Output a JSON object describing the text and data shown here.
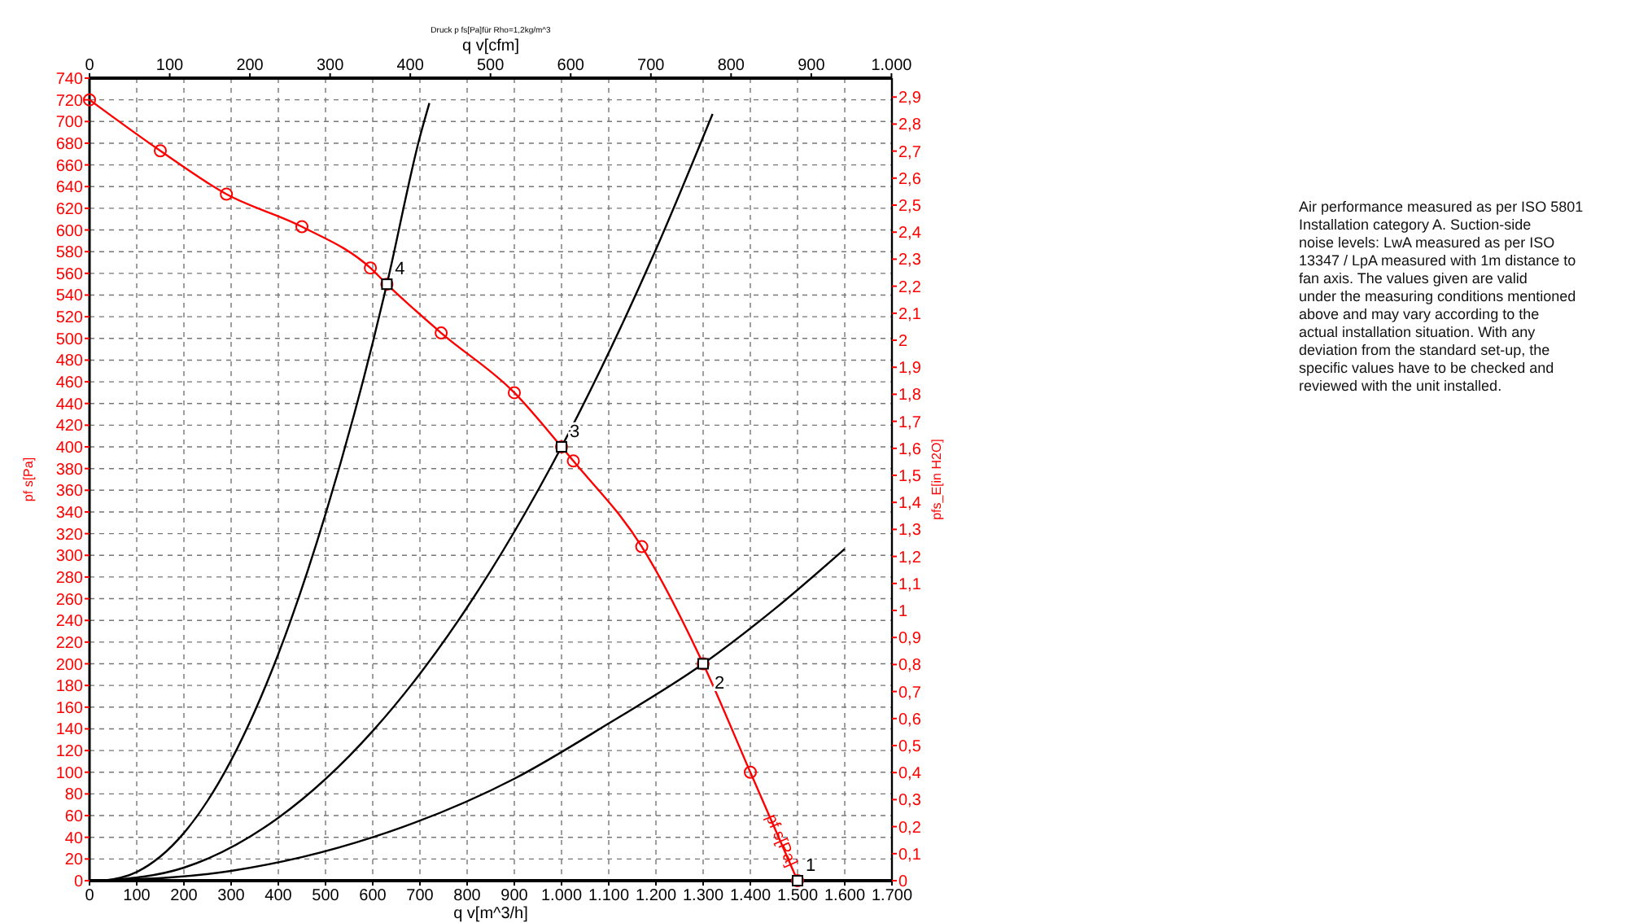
{
  "chart_data": {
    "type": "line",
    "title": "Druck p fs[Pa]für Rho=1,2kg/m^3",
    "xlabel": "q v[m^3/h]",
    "x2label": "q v[cfm]",
    "ylabel": "pf s[Pa]",
    "y2label": "pfs_E[in H2O]",
    "xlim": [
      0,
      1700
    ],
    "xticks": [
      0,
      100,
      200,
      300,
      400,
      500,
      600,
      700,
      800,
      900,
      {
        "value": 1000,
        "label": "1.000"
      },
      {
        "value": 1100,
        "label": "1.100"
      },
      {
        "value": 1200,
        "label": "1.200"
      },
      {
        "value": 1300,
        "label": "1.300"
      },
      {
        "value": 1400,
        "label": "1.400"
      },
      {
        "value": 1500,
        "label": "1.500"
      },
      {
        "value": 1600,
        "label": "1.600"
      },
      {
        "value": 1700,
        "label": "1.700"
      }
    ],
    "x2lim": [
      0,
      1000.6
    ],
    "x2ticks": [
      0,
      100,
      200,
      300,
      400,
      500,
      600,
      700,
      800,
      900,
      {
        "value": 1000,
        "label": "1.000"
      }
    ],
    "ylim": [
      0,
      740
    ],
    "yticks": [
      0,
      20,
      40,
      60,
      80,
      100,
      120,
      140,
      160,
      180,
      200,
      220,
      240,
      260,
      280,
      300,
      320,
      340,
      360,
      380,
      400,
      420,
      440,
      460,
      480,
      500,
      520,
      540,
      560,
      580,
      600,
      620,
      640,
      660,
      680,
      700,
      720,
      740
    ],
    "y2lim": [
      0,
      2.97
    ],
    "y2ticks": [
      0,
      {
        "value": 0.1,
        "label": "0,1"
      },
      {
        "value": 0.2,
        "label": "0,2"
      },
      {
        "value": 0.3,
        "label": "0,3"
      },
      {
        "value": 0.4,
        "label": "0,4"
      },
      {
        "value": 0.5,
        "label": "0,5"
      },
      {
        "value": 0.6,
        "label": "0,6"
      },
      {
        "value": 0.7,
        "label": "0,7"
      },
      {
        "value": 0.8,
        "label": "0,8"
      },
      {
        "value": 0.9,
        "label": "0,9"
      },
      1,
      {
        "value": 1.1,
        "label": "1,1"
      },
      {
        "value": 1.2,
        "label": "1,2"
      },
      {
        "value": 1.3,
        "label": "1,3"
      },
      {
        "value": 1.4,
        "label": "1,4"
      },
      {
        "value": 1.5,
        "label": "1,5"
      },
      {
        "value": 1.6,
        "label": "1,6"
      },
      {
        "value": 1.7,
        "label": "1,7"
      },
      {
        "value": 1.8,
        "label": "1,8"
      },
      {
        "value": 1.9,
        "label": "1,9"
      },
      2,
      {
        "value": 2.1,
        "label": "2,1"
      },
      {
        "value": 2.2,
        "label": "2,2"
      },
      {
        "value": 2.3,
        "label": "2,3"
      },
      {
        "value": 2.4,
        "label": "2,4"
      },
      {
        "value": 2.5,
        "label": "2,5"
      },
      {
        "value": 2.6,
        "label": "2,6"
      },
      {
        "value": 2.7,
        "label": "2,7"
      },
      {
        "value": 2.8,
        "label": "2,8"
      },
      {
        "value": 2.9,
        "label": "2,9"
      }
    ],
    "grid": true,
    "series": [
      {
        "name": "pf s[Pa]",
        "color": "#ff0000",
        "marker": "circle",
        "x": [
          0,
          150,
          290,
          450,
          595,
          630,
          745,
          900,
          1000,
          1025,
          1170,
          1300,
          1400,
          1500
        ],
        "values": [
          720,
          673,
          633,
          603,
          565,
          550,
          505,
          450,
          400,
          387,
          308,
          200,
          100,
          0
        ]
      },
      {
        "color": "#000000",
        "marker": "none",
        "x": [
          30,
          100,
          200,
          300,
          400,
          500,
          600,
          630,
          700,
          720
        ],
        "values": [
          0,
          8,
          44,
          111,
          209,
          338,
          496,
          550,
          686,
          717
        ]
      },
      {
        "color": "#000000",
        "marker": "none",
        "x": [
          30,
          200,
          400,
          600,
          800,
          1000,
          1200,
          1320
        ],
        "values": [
          0,
          12,
          58,
          138,
          252,
          400,
          582,
          707
        ]
      },
      {
        "color": "#000000",
        "marker": "none",
        "x": [
          30,
          300,
          600,
          900,
          1100,
          1300,
          1450,
          1600
        ],
        "values": [
          0,
          9,
          40,
          94,
          145,
          200,
          250,
          306
        ]
      },
      {
        "type": "scatter",
        "color": "#000000",
        "marker": "square",
        "x": [
          1500,
          1300,
          1000,
          630
        ],
        "values": [
          0,
          200,
          400,
          550
        ]
      }
    ],
    "annotations": [
      {
        "text": "1",
        "x": 1500,
        "y": 0
      },
      {
        "text": "2",
        "x": 1300,
        "y": 200
      },
      {
        "text": "3",
        "x": 1000,
        "y": 400
      },
      {
        "text": "4",
        "x": 630,
        "y": 550
      },
      "Air performance measured as per ISO 5801 Installation category A. Suction-side noise levels: LwA measured as per ISO 13347 / LpA measured with 1m distance to fan axis. The values given are valid under the measuring conditions mentioned above and may vary according to the actual installation situation. With any deviation from the standard set-up, the specific values have to be checked and reviewed with the unit installed."
    ]
  }
}
